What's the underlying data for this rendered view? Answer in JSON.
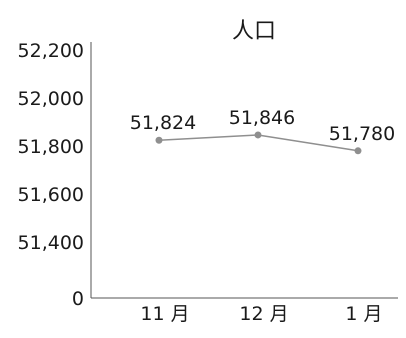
{
  "chart_data": {
    "type": "line",
    "title": "人口",
    "xlabel": "",
    "ylabel": "",
    "categories": [
      "11 月",
      "12 月",
      "1 月"
    ],
    "y_tick_labels": [
      "0",
      "51,400",
      "51,600",
      "51,800",
      "52,000",
      "52,200"
    ],
    "ylim": [
      51200,
      52200
    ],
    "axis_break": true,
    "grid": false,
    "legend": "none",
    "series": [
      {
        "values": [
          51824,
          51846,
          51780
        ],
        "value_labels": [
          "51,824",
          "51,846",
          "51,780"
        ],
        "color": "#8f8f8f"
      }
    ]
  }
}
